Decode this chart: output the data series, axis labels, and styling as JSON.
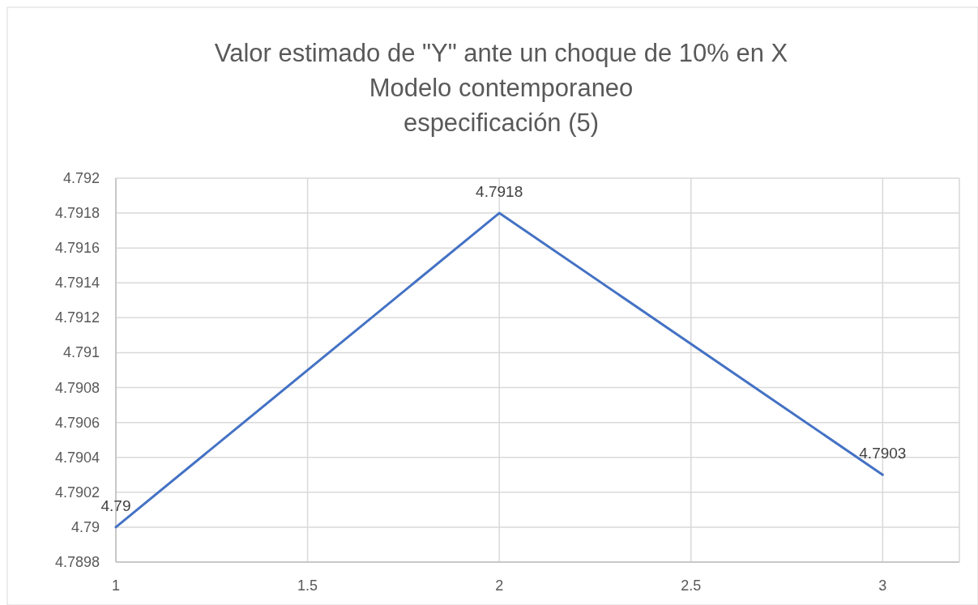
{
  "chart_data": {
    "type": "line",
    "title": "Valor estimado de \"Y\" ante un choque de 10% en X\nModelo contemporaneo\nespecificación (5)",
    "x": [
      1,
      2,
      3
    ],
    "series": [
      {
        "color": "#4472c4",
        "values": [
          4.79,
          4.7918,
          4.7903
        ]
      }
    ],
    "xlim": [
      1,
      3.2
    ],
    "xticks": [
      1,
      1.5,
      2,
      2.5,
      3
    ],
    "ylim": [
      4.7898,
      4.792
    ],
    "yticks": [
      4.7898,
      4.79,
      4.7902,
      4.7904,
      4.7906,
      4.7908,
      4.791,
      4.7912,
      4.7914,
      4.7916,
      4.7918,
      4.792
    ],
    "grid": true,
    "data_labels": true,
    "marker": "none",
    "line_style": "solid"
  }
}
